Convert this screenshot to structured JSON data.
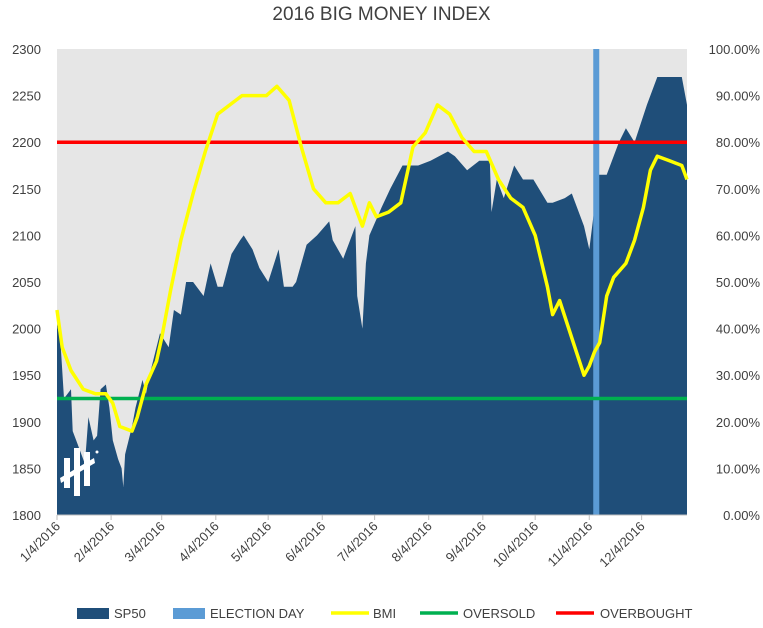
{
  "chart_data": {
    "type": "area",
    "title": "2016 BIG MONEY INDEX",
    "x_ticks": [
      "1/4/2016",
      "2/4/2016",
      "3/4/2016",
      "4/4/2016",
      "5/4/2016",
      "6/4/2016",
      "7/4/2016",
      "8/4/2016",
      "9/4/2016",
      "10/4/2016",
      "11/4/2016",
      "12/4/2016"
    ],
    "y_left_ticks": [
      "1800",
      "1850",
      "1900",
      "1950",
      "2000",
      "2050",
      "2100",
      "2150",
      "2200",
      "2250",
      "2300"
    ],
    "y_right_ticks": [
      "0.00%",
      "10.00%",
      "20.00%",
      "30.00%",
      "40.00%",
      "50.00%",
      "60.00%",
      "70.00%",
      "80.00%",
      "90.00%",
      "100.00%"
    ],
    "ylim_left": [
      1800,
      2300
    ],
    "ylim_right": [
      0,
      1
    ],
    "xlim": [
      "2016-01-04",
      "2016-12-30"
    ],
    "grid": false,
    "legend_position": "bottom",
    "colors": {
      "plot_background": "#e6e6e6",
      "sp50": "#1f4e79",
      "election_day": "#5b9bd5",
      "bmi": "#ffff00",
      "oversold": "#00b050",
      "overbought": "#ff0000"
    },
    "series": [
      {
        "name": "SP50",
        "kind": "area",
        "axis": "left",
        "points": [
          [
            "2016-01-04",
            2005
          ],
          [
            "2016-01-06",
            1985
          ],
          [
            "2016-01-08",
            1925
          ],
          [
            "2016-01-12",
            1935
          ],
          [
            "2016-01-13",
            1890
          ],
          [
            "2016-01-15",
            1880
          ],
          [
            "2016-01-20",
            1855
          ],
          [
            "2016-01-22",
            1905
          ],
          [
            "2016-01-25",
            1880
          ],
          [
            "2016-01-27",
            1885
          ],
          [
            "2016-01-29",
            1935
          ],
          [
            "2016-02-01",
            1940
          ],
          [
            "2016-02-03",
            1915
          ],
          [
            "2016-02-05",
            1880
          ],
          [
            "2016-02-08",
            1860
          ],
          [
            "2016-02-10",
            1850
          ],
          [
            "2016-02-11",
            1830
          ],
          [
            "2016-02-12",
            1865
          ],
          [
            "2016-02-16",
            1895
          ],
          [
            "2016-02-18",
            1915
          ],
          [
            "2016-02-22",
            1945
          ],
          [
            "2016-02-24",
            1930
          ],
          [
            "2016-02-26",
            1950
          ],
          [
            "2016-03-01",
            1980
          ],
          [
            "2016-03-03",
            1995
          ],
          [
            "2016-03-08",
            1980
          ],
          [
            "2016-03-11",
            2020
          ],
          [
            "2016-03-15",
            2015
          ],
          [
            "2016-03-18",
            2050
          ],
          [
            "2016-03-22",
            2050
          ],
          [
            "2016-03-28",
            2035
          ],
          [
            "2016-04-01",
            2070
          ],
          [
            "2016-04-05",
            2045
          ],
          [
            "2016-04-08",
            2045
          ],
          [
            "2016-04-13",
            2080
          ],
          [
            "2016-04-18",
            2095
          ],
          [
            "2016-04-20",
            2100
          ],
          [
            "2016-04-25",
            2085
          ],
          [
            "2016-04-29",
            2065
          ],
          [
            "2016-05-04",
            2050
          ],
          [
            "2016-05-10",
            2085
          ],
          [
            "2016-05-13",
            2045
          ],
          [
            "2016-05-18",
            2045
          ],
          [
            "2016-05-20",
            2050
          ],
          [
            "2016-05-26",
            2090
          ],
          [
            "2016-06-01",
            2100
          ],
          [
            "2016-06-08",
            2115
          ],
          [
            "2016-06-10",
            2095
          ],
          [
            "2016-06-16",
            2075
          ],
          [
            "2016-06-23",
            2110
          ],
          [
            "2016-06-24",
            2035
          ],
          [
            "2016-06-27",
            2000
          ],
          [
            "2016-06-29",
            2070
          ],
          [
            "2016-07-01",
            2100
          ],
          [
            "2016-07-08",
            2130
          ],
          [
            "2016-07-13",
            2150
          ],
          [
            "2016-07-20",
            2175
          ],
          [
            "2016-07-29",
            2175
          ],
          [
            "2016-08-05",
            2180
          ],
          [
            "2016-08-15",
            2190
          ],
          [
            "2016-08-19",
            2185
          ],
          [
            "2016-08-26",
            2170
          ],
          [
            "2016-09-02",
            2180
          ],
          [
            "2016-09-08",
            2180
          ],
          [
            "2016-09-09",
            2125
          ],
          [
            "2016-09-12",
            2160
          ],
          [
            "2016-09-16",
            2140
          ],
          [
            "2016-09-22",
            2175
          ],
          [
            "2016-09-27",
            2160
          ],
          [
            "2016-10-03",
            2160
          ],
          [
            "2016-10-11",
            2135
          ],
          [
            "2016-10-14",
            2135
          ],
          [
            "2016-10-21",
            2140
          ],
          [
            "2016-10-25",
            2145
          ],
          [
            "2016-11-01",
            2110
          ],
          [
            "2016-11-04",
            2085
          ],
          [
            "2016-11-07",
            2130
          ],
          [
            "2016-11-09",
            2165
          ],
          [
            "2016-11-14",
            2165
          ],
          [
            "2016-11-21",
            2200
          ],
          [
            "2016-11-25",
            2215
          ],
          [
            "2016-11-30",
            2200
          ],
          [
            "2016-12-07",
            2240
          ],
          [
            "2016-12-13",
            2270
          ],
          [
            "2016-12-20",
            2270
          ],
          [
            "2016-12-27",
            2270
          ],
          [
            "2016-12-30",
            2240
          ]
        ]
      },
      {
        "name": "ELECTION DAY",
        "kind": "vline",
        "x": "2016-11-08"
      },
      {
        "name": "BMI",
        "kind": "line",
        "axis": "right",
        "points": [
          [
            "2016-01-04",
            0.44
          ],
          [
            "2016-01-07",
            0.36
          ],
          [
            "2016-01-12",
            0.31
          ],
          [
            "2016-01-19",
            0.27
          ],
          [
            "2016-01-26",
            0.26
          ],
          [
            "2016-02-01",
            0.26
          ],
          [
            "2016-02-05",
            0.24
          ],
          [
            "2016-02-09",
            0.19
          ],
          [
            "2016-02-16",
            0.18
          ],
          [
            "2016-02-19",
            0.21
          ],
          [
            "2016-02-24",
            0.28
          ],
          [
            "2016-03-01",
            0.33
          ],
          [
            "2016-03-04",
            0.38
          ],
          [
            "2016-03-09",
            0.48
          ],
          [
            "2016-03-15",
            0.59
          ],
          [
            "2016-03-22",
            0.69
          ],
          [
            "2016-03-29",
            0.78
          ],
          [
            "2016-04-05",
            0.86
          ],
          [
            "2016-04-12",
            0.88
          ],
          [
            "2016-04-19",
            0.9
          ],
          [
            "2016-04-26",
            0.9
          ],
          [
            "2016-05-03",
            0.9
          ],
          [
            "2016-05-09",
            0.92
          ],
          [
            "2016-05-16",
            0.89
          ],
          [
            "2016-05-23",
            0.79
          ],
          [
            "2016-05-30",
            0.7
          ],
          [
            "2016-06-06",
            0.67
          ],
          [
            "2016-06-13",
            0.67
          ],
          [
            "2016-06-20",
            0.69
          ],
          [
            "2016-06-27",
            0.62
          ],
          [
            "2016-07-01",
            0.67
          ],
          [
            "2016-07-05",
            0.64
          ],
          [
            "2016-07-12",
            0.65
          ],
          [
            "2016-07-19",
            0.67
          ],
          [
            "2016-07-26",
            0.79
          ],
          [
            "2016-08-02",
            0.82
          ],
          [
            "2016-08-09",
            0.88
          ],
          [
            "2016-08-16",
            0.86
          ],
          [
            "2016-08-23",
            0.81
          ],
          [
            "2016-08-30",
            0.78
          ],
          [
            "2016-09-06",
            0.78
          ],
          [
            "2016-09-13",
            0.72
          ],
          [
            "2016-09-20",
            0.68
          ],
          [
            "2016-09-27",
            0.66
          ],
          [
            "2016-10-04",
            0.6
          ],
          [
            "2016-10-11",
            0.49
          ],
          [
            "2016-10-14",
            0.43
          ],
          [
            "2016-10-18",
            0.46
          ],
          [
            "2016-10-25",
            0.38
          ],
          [
            "2016-11-01",
            0.3
          ],
          [
            "2016-11-04",
            0.32
          ],
          [
            "2016-11-07",
            0.35
          ],
          [
            "2016-11-10",
            0.37
          ],
          [
            "2016-11-14",
            0.47
          ],
          [
            "2016-11-18",
            0.51
          ],
          [
            "2016-11-25",
            0.54
          ],
          [
            "2016-11-30",
            0.59
          ],
          [
            "2016-12-05",
            0.66
          ],
          [
            "2016-12-09",
            0.74
          ],
          [
            "2016-12-13",
            0.77
          ],
          [
            "2016-12-20",
            0.76
          ],
          [
            "2016-12-27",
            0.75
          ],
          [
            "2016-12-30",
            0.72
          ]
        ]
      },
      {
        "name": "OVERSOLD",
        "kind": "hline",
        "axis": "right",
        "value": 0.25
      },
      {
        "name": "OVERBOUGHT",
        "kind": "hline",
        "axis": "right",
        "value": 0.8
      }
    ]
  }
}
